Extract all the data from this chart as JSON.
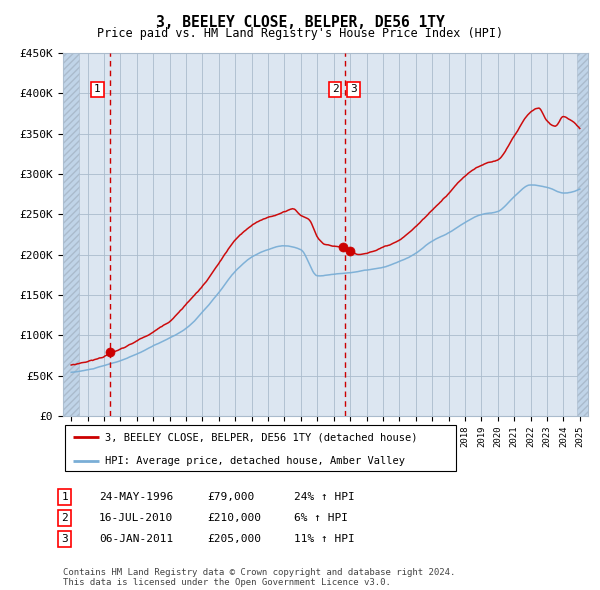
{
  "title": "3, BEELEY CLOSE, BELPER, DE56 1TY",
  "subtitle": "Price paid vs. HM Land Registry's House Price Index (HPI)",
  "background_color": "#dce6f1",
  "plot_bg_color": "#dce6f1",
  "hatch_color": "#c8d8e8",
  "grid_color": "#aabbcc",
  "red_line_color": "#cc0000",
  "blue_line_color": "#7aaed6",
  "marker_color": "#cc0000",
  "dashed_line_color": "#cc0000",
  "sale_points": [
    {
      "date_num": 1996.38,
      "price": 79000,
      "label": "1"
    },
    {
      "date_num": 2010.54,
      "price": 210000,
      "label": "2"
    },
    {
      "date_num": 2011.02,
      "price": 205000,
      "label": "3"
    }
  ],
  "dashed_vlines": [
    1996.38,
    2010.7
  ],
  "legend_entries": [
    "3, BEELEY CLOSE, BELPER, DE56 1TY (detached house)",
    "HPI: Average price, detached house, Amber Valley"
  ],
  "table_rows": [
    {
      "num": "1",
      "date": "24-MAY-1996",
      "price": "£79,000",
      "change": "24% ↑ HPI"
    },
    {
      "num": "2",
      "date": "16-JUL-2010",
      "price": "£210,000",
      "change": "6% ↑ HPI"
    },
    {
      "num": "3",
      "date": "06-JAN-2011",
      "price": "£205,000",
      "change": "11% ↑ HPI"
    }
  ],
  "footnote": "Contains HM Land Registry data © Crown copyright and database right 2024.\nThis data is licensed under the Open Government Licence v3.0.",
  "ylim": [
    0,
    450000
  ],
  "xlim": [
    1993.5,
    2025.5
  ],
  "yticks": [
    0,
    50000,
    100000,
    150000,
    200000,
    250000,
    300000,
    350000,
    400000,
    450000
  ],
  "ytick_labels": [
    "£0",
    "£50K",
    "£100K",
    "£150K",
    "£200K",
    "£250K",
    "£300K",
    "£350K",
    "£400K",
    "£450K"
  ],
  "xticks": [
    1994,
    1995,
    1996,
    1997,
    1998,
    1999,
    2000,
    2001,
    2002,
    2003,
    2004,
    2005,
    2006,
    2007,
    2008,
    2009,
    2010,
    2011,
    2012,
    2013,
    2014,
    2015,
    2016,
    2017,
    2018,
    2019,
    2020,
    2021,
    2022,
    2023,
    2024,
    2025
  ]
}
